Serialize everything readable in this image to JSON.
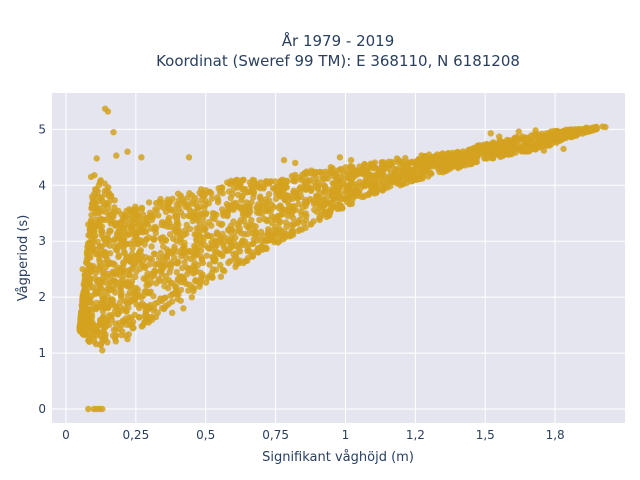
{
  "chart_data": {
    "type": "scatter",
    "title_line1": "År 1979 - 2019",
    "title_line2": "Koordinat (Sweref 99 TM): E 368110, N 6181208",
    "xlabel": "Signifikant våghöjd (m)",
    "ylabel": "Vågperiod (s)",
    "xlim": [
      -0.05,
      2.0
    ],
    "ylim": [
      -0.25,
      5.65
    ],
    "x_ticks": [
      0,
      0.25,
      0.5,
      0.75,
      1,
      1.25,
      1.5,
      1.75
    ],
    "x_tick_labels": [
      "0",
      "0,25",
      "0,5",
      "0,75",
      "1",
      "1,2",
      "1,5",
      "1,8"
    ],
    "y_ticks": [
      0,
      1,
      2,
      3,
      4,
      5
    ],
    "y_tick_labels": [
      "0",
      "1",
      "2",
      "3",
      "4",
      "5"
    ],
    "grid": true,
    "colors": {
      "plot_bg": "#e5e5f0",
      "grid": "#ffffff",
      "marker": "#d4a21f",
      "text": "#2a3f5f"
    },
    "band": [
      [
        0.05,
        1.4,
        1.5
      ],
      [
        0.1,
        1.1,
        4.2
      ],
      [
        0.15,
        1.15,
        4.0
      ],
      [
        0.2,
        1.25,
        3.5
      ],
      [
        0.25,
        1.4,
        3.65
      ],
      [
        0.3,
        1.55,
        3.75
      ],
      [
        0.4,
        1.9,
        3.85
      ],
      [
        0.5,
        2.2,
        3.95
      ],
      [
        0.6,
        2.5,
        4.1
      ],
      [
        0.75,
        2.95,
        4.1
      ],
      [
        0.9,
        3.35,
        4.3
      ],
      [
        1.0,
        3.6,
        4.35
      ],
      [
        1.1,
        3.85,
        4.4
      ],
      [
        1.2,
        4.0,
        4.5
      ],
      [
        1.3,
        4.15,
        4.55
      ],
      [
        1.4,
        4.3,
        4.6
      ],
      [
        1.5,
        4.45,
        4.75
      ],
      [
        1.6,
        4.55,
        4.85
      ],
      [
        1.7,
        4.65,
        4.95
      ],
      [
        1.8,
        4.85,
        5.0
      ],
      [
        1.9,
        5.0,
        5.05
      ]
    ],
    "outliers": [
      [
        0.08,
        0.0
      ],
      [
        0.1,
        0.0
      ],
      [
        0.12,
        0.0
      ],
      [
        0.11,
        0.0
      ],
      [
        0.13,
        0.0
      ],
      [
        0.14,
        5.37
      ],
      [
        0.15,
        5.32
      ],
      [
        0.17,
        4.95
      ],
      [
        0.18,
        4.53
      ],
      [
        0.11,
        4.48
      ],
      [
        0.22,
        4.6
      ],
      [
        0.44,
        4.5
      ],
      [
        0.27,
        4.5
      ],
      [
        0.09,
        4.15
      ],
      [
        0.98,
        4.5
      ],
      [
        1.02,
        4.45
      ],
      [
        0.82,
        4.4
      ],
      [
        0.78,
        4.45
      ],
      [
        1.52,
        4.93
      ],
      [
        1.55,
        4.87
      ],
      [
        1.62,
        4.96
      ],
      [
        1.68,
        4.98
      ],
      [
        1.72,
        4.93
      ],
      [
        1.78,
        4.96
      ],
      [
        1.83,
        4.98
      ],
      [
        1.86,
        5.02
      ],
      [
        1.92,
        5.05
      ],
      [
        1.93,
        5.04
      ],
      [
        1.59,
        4.8
      ],
      [
        1.69,
        4.8
      ],
      [
        1.71,
        4.62
      ],
      [
        1.78,
        4.65
      ],
      [
        1.63,
        4.64
      ],
      [
        0.42,
        1.8
      ],
      [
        0.45,
        2.0
      ],
      [
        0.38,
        1.72
      ],
      [
        0.22,
        1.25
      ],
      [
        0.13,
        1.05
      ],
      [
        0.05,
        1.4
      ],
      [
        0.07,
        2.1
      ],
      [
        0.06,
        2.5
      ],
      [
        0.08,
        3.3
      ]
    ]
  }
}
